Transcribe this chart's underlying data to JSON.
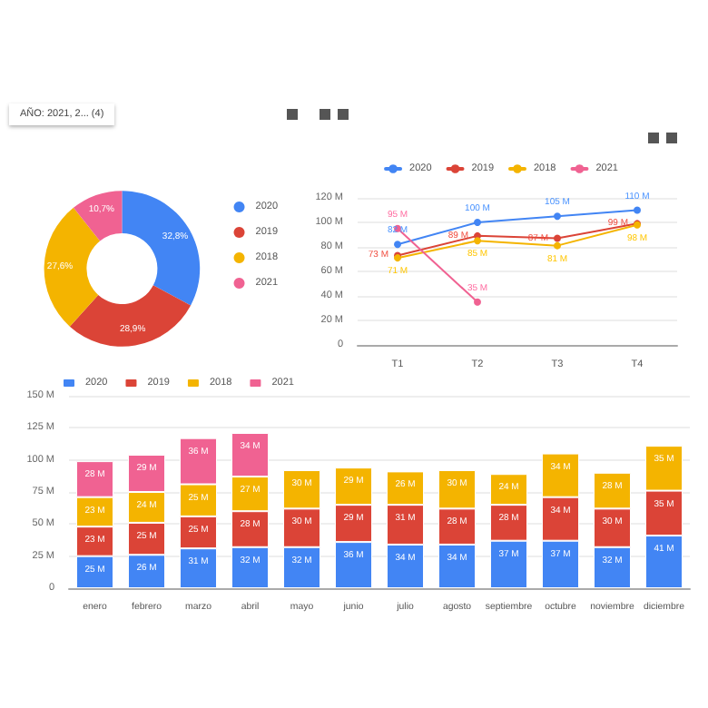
{
  "chart_data": [
    {
      "type": "donut",
      "categories": [
        "2020",
        "2019",
        "2018",
        "2021"
      ],
      "values": [
        32.8,
        28.9,
        27.6,
        10.7
      ],
      "colors": [
        "#4285f4",
        "#db4437",
        "#f4b400",
        "#f06292"
      ],
      "value_labels": [
        "32,8%",
        "28,9%",
        "27,6%",
        "10,7%"
      ],
      "legend": "right",
      "annotations": [
        "AÑO: 2021, 2... (4)"
      ]
    },
    {
      "type": "line",
      "categories": [
        "T1",
        "T2",
        "T3",
        "T4"
      ],
      "series": [
        {
          "name": "2020",
          "color": "#4285f4",
          "values": [
            82,
            100,
            105,
            110
          ],
          "value_labels": [
            "82 M",
            "100 M",
            "105 M",
            "110 M"
          ]
        },
        {
          "name": "2019",
          "color": "#db4437",
          "values": [
            73,
            89,
            87,
            99
          ],
          "value_labels": [
            "73 M",
            "89 M",
            "87 M",
            "99 M"
          ]
        },
        {
          "name": "2018",
          "color": "#f4b400",
          "values": [
            71,
            85,
            81,
            98
          ],
          "value_labels": [
            "71 M",
            "85 M",
            "81 M",
            "98 M"
          ]
        },
        {
          "name": "2021",
          "color": "#f06292",
          "values": [
            95,
            35,
            null,
            null
          ],
          "value_labels": [
            "95 M",
            "35 M",
            null,
            null
          ]
        }
      ],
      "ylim": [
        0,
        120
      ],
      "yticks": [
        0,
        {
          "value": 20,
          "label": "20 M"
        },
        {
          "value": 40,
          "label": "40 M"
        },
        {
          "value": 60,
          "label": "60 M"
        },
        {
          "value": 80,
          "label": "80 M"
        },
        {
          "value": 100,
          "label": "100 M"
        },
        {
          "value": 120,
          "label": "120 M"
        }
      ],
      "grid": "y",
      "legend": "top",
      "marker": "circle",
      "line_style": "solid"
    },
    {
      "type": "bar",
      "stacked": true,
      "categories": [
        "enero",
        "febrero",
        "marzo",
        "abril",
        "mayo",
        "junio",
        "julio",
        "agosto",
        "septiembre",
        "octubre",
        "noviembre",
        "diciembre"
      ],
      "series": [
        {
          "name": "2020",
          "color": "#4285f4",
          "values": [
            25,
            26,
            31,
            32,
            32,
            36,
            34,
            34,
            37,
            37,
            32,
            41
          ],
          "value_labels": [
            "25 M",
            "26 M",
            "31 M",
            "32 M",
            "32 M",
            "36 M",
            "34 M",
            "34 M",
            "37 M",
            "37 M",
            "32 M",
            "41 M"
          ]
        },
        {
          "name": "2019",
          "color": "#db4437",
          "values": [
            23,
            25,
            25,
            28,
            30,
            29,
            31,
            28,
            28,
            34,
            30,
            35
          ],
          "value_labels": [
            "23 M",
            "25 M",
            "25 M",
            "28 M",
            "30 M",
            "29 M",
            "31 M",
            "28 M",
            "28 M",
            "34 M",
            "30 M",
            "35 M"
          ]
        },
        {
          "name": "2018",
          "color": "#f4b400",
          "values": [
            23,
            24,
            25,
            27,
            30,
            29,
            26,
            30,
            24,
            34,
            28,
            35
          ],
          "value_labels": [
            "23 M",
            "24 M",
            "25 M",
            "27 M",
            "30 M",
            "29 M",
            "26 M",
            "30 M",
            "24 M",
            "34 M",
            "28 M",
            "35 M"
          ]
        },
        {
          "name": "2021",
          "color": "#f06292",
          "values": [
            28,
            29,
            36,
            34,
            null,
            null,
            null,
            null,
            null,
            null,
            null,
            null
          ],
          "value_labels": [
            "28 M",
            "29 M",
            "36 M",
            "34 M",
            null,
            null,
            null,
            null,
            null,
            null,
            null,
            null
          ]
        }
      ],
      "ylim": [
        0,
        150
      ],
      "yticks": [
        0,
        {
          "value": 25,
          "label": "25 M"
        },
        {
          "value": 50,
          "label": "50 M"
        },
        {
          "value": 75,
          "label": "75 M"
        },
        {
          "value": 100,
          "label": "100 M"
        },
        {
          "value": 125,
          "label": "125 M"
        },
        {
          "value": 150,
          "label": "150 M"
        }
      ],
      "grid": "y",
      "legend": "top left"
    }
  ]
}
